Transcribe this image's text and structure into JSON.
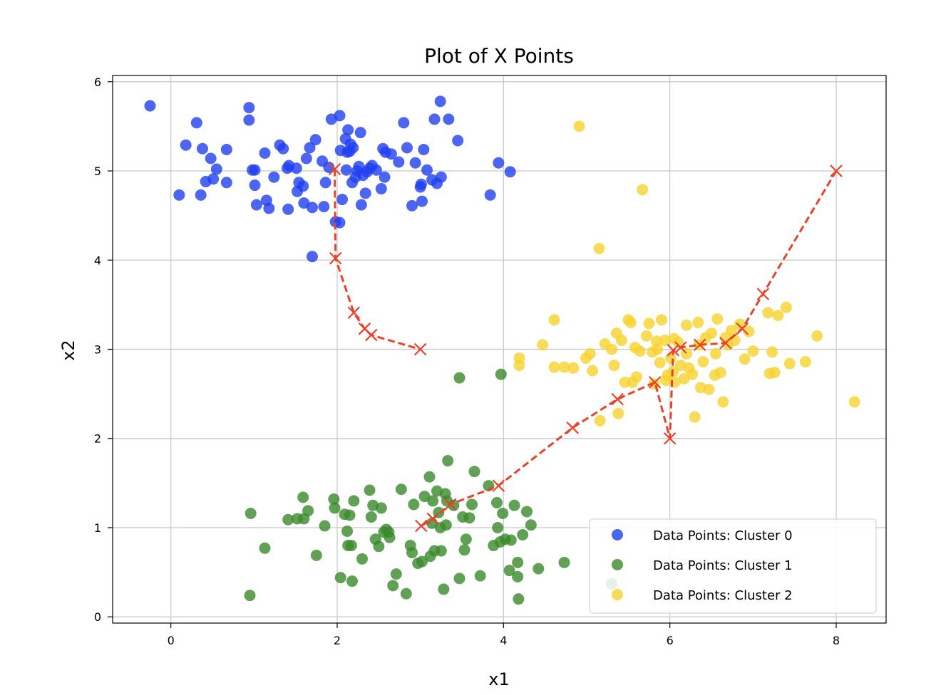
{
  "chart_data": {
    "type": "scatter",
    "title": "Plot of X Points",
    "xlabel": "x1",
    "ylabel": "x2",
    "xlim": [
      -0.7,
      8.6
    ],
    "ylim": [
      -0.07,
      6.07
    ],
    "xticks": [
      "0",
      "2",
      "4",
      "6",
      "8"
    ],
    "yticks": [
      "0",
      "1",
      "2",
      "3",
      "4",
      "5",
      "6"
    ],
    "grid": true,
    "legend_position": "lower-right",
    "series": [
      {
        "name": "Data Points: Cluster 0",
        "color": "#1f3ff0",
        "points": [
          [
            -0.25,
            5.73
          ],
          [
            0.1,
            4.73
          ],
          [
            0.18,
            5.29
          ],
          [
            0.31,
            5.54
          ],
          [
            0.36,
            4.73
          ],
          [
            0.38,
            5.25
          ],
          [
            0.42,
            4.88
          ],
          [
            0.48,
            5.14
          ],
          [
            0.51,
            4.91
          ],
          [
            0.55,
            5.02
          ],
          [
            0.67,
            5.24
          ],
          [
            0.67,
            4.87
          ],
          [
            0.94,
            5.71
          ],
          [
            0.94,
            5.57
          ],
          [
            0.98,
            5.01
          ],
          [
            1.01,
            5.01
          ],
          [
            1.01,
            4.84
          ],
          [
            1.03,
            4.62
          ],
          [
            1.13,
            5.2
          ],
          [
            1.15,
            4.67
          ],
          [
            1.18,
            4.58
          ],
          [
            1.24,
            4.93
          ],
          [
            1.31,
            5.29
          ],
          [
            1.35,
            5.25
          ],
          [
            1.4,
            5.03
          ],
          [
            1.41,
            4.57
          ],
          [
            1.42,
            5.06
          ],
          [
            1.51,
            5.03
          ],
          [
            1.52,
            4.77
          ],
          [
            1.54,
            4.87
          ],
          [
            1.59,
            4.83
          ],
          [
            1.6,
            4.64
          ],
          [
            1.63,
            5.14
          ],
          [
            1.67,
            5.26
          ],
          [
            1.7,
            4.59
          ],
          [
            1.74,
            5.35
          ],
          [
            1.82,
            5.11
          ],
          [
            1.84,
            4.6
          ],
          [
            1.86,
            4.87
          ],
          [
            1.9,
            5.04
          ],
          [
            1.93,
            5.58
          ],
          [
            1.98,
            4.43
          ],
          [
            2.03,
            5.62
          ],
          [
            2.04,
            5.23
          ],
          [
            2.06,
            4.68
          ],
          [
            2.1,
            5.36
          ],
          [
            2.11,
            5.01
          ],
          [
            2.12,
            5.21
          ],
          [
            2.13,
            5.46
          ],
          [
            2.16,
            5.3
          ],
          [
            2.18,
            4.87
          ],
          [
            2.19,
            5.26
          ],
          [
            2.22,
            4.93
          ],
          [
            2.24,
            5.0
          ],
          [
            2.26,
            5.05
          ],
          [
            2.28,
            5.43
          ],
          [
            2.29,
            4.62
          ],
          [
            2.31,
            4.95
          ],
          [
            2.34,
            4.75
          ],
          [
            2.36,
            4.99
          ],
          [
            2.39,
            5.03
          ],
          [
            2.42,
            5.06
          ],
          [
            2.47,
            5.01
          ],
          [
            2.53,
            4.8
          ],
          [
            2.55,
            5.25
          ],
          [
            2.57,
            4.93
          ],
          [
            2.58,
            5.21
          ],
          [
            2.65,
            5.19
          ],
          [
            2.74,
            5.1
          ],
          [
            2.8,
            5.54
          ],
          [
            2.84,
            5.26
          ],
          [
            2.9,
            4.61
          ],
          [
            2.94,
            5.09
          ],
          [
            3.0,
            4.82
          ],
          [
            3.02,
            4.66
          ],
          [
            3.04,
            5.24
          ],
          [
            3.08,
            5.01
          ],
          [
            3.14,
            4.9
          ],
          [
            3.17,
            5.58
          ],
          [
            3.2,
            4.86
          ],
          [
            3.24,
            5.78
          ],
          [
            3.25,
            4.93
          ],
          [
            3.34,
            5.58
          ],
          [
            3.45,
            5.34
          ],
          [
            3.84,
            4.73
          ],
          [
            3.94,
            5.09
          ],
          [
            4.08,
            4.99
          ],
          [
            1.7,
            4.04
          ],
          [
            2.03,
            4.42
          ],
          [
            2.15,
            5.22
          ],
          [
            3.01,
            4.85
          ]
        ]
      },
      {
        "name": "Data Points: Cluster 1",
        "color": "#3a8a2a",
        "points": [
          [
            0.96,
            1.16
          ],
          [
            0.95,
            0.24
          ],
          [
            1.13,
            0.77
          ],
          [
            1.41,
            1.09
          ],
          [
            1.52,
            1.1
          ],
          [
            1.59,
            1.34
          ],
          [
            1.6,
            1.1
          ],
          [
            1.65,
            1.19
          ],
          [
            1.75,
            0.69
          ],
          [
            1.85,
            1.02
          ],
          [
            1.96,
            1.32
          ],
          [
            1.97,
            1.22
          ],
          [
            2.04,
            0.44
          ],
          [
            2.09,
            1.15
          ],
          [
            2.12,
            0.96
          ],
          [
            2.13,
            0.8
          ],
          [
            2.15,
            1.14
          ],
          [
            2.17,
            0.8
          ],
          [
            2.18,
            0.4
          ],
          [
            2.2,
            1.3
          ],
          [
            2.3,
            0.65
          ],
          [
            2.39,
            1.42
          ],
          [
            2.41,
            1.12
          ],
          [
            2.43,
            1.25
          ],
          [
            2.46,
            0.87
          ],
          [
            2.5,
            0.79
          ],
          [
            2.53,
            1.22
          ],
          [
            2.56,
            0.95
          ],
          [
            2.59,
            0.98
          ],
          [
            2.63,
            0.89
          ],
          [
            2.67,
            0.35
          ],
          [
            2.71,
            0.48
          ],
          [
            2.77,
            1.43
          ],
          [
            2.83,
            0.26
          ],
          [
            2.88,
            0.8
          ],
          [
            2.9,
            0.72
          ],
          [
            2.92,
            1.26
          ],
          [
            3.02,
            0.62
          ],
          [
            3.05,
            1.35
          ],
          [
            3.11,
            1.57
          ],
          [
            3.12,
            0.68
          ],
          [
            3.15,
            1.3
          ],
          [
            3.17,
            0.74
          ],
          [
            3.2,
            1.41
          ],
          [
            3.22,
            1.17
          ],
          [
            3.25,
            0.74
          ],
          [
            3.28,
            0.31
          ],
          [
            3.3,
            1.38
          ],
          [
            3.31,
            1.03
          ],
          [
            3.32,
            1.3
          ],
          [
            3.33,
            1.75
          ],
          [
            3.4,
            1.25
          ],
          [
            3.47,
            0.43
          ],
          [
            3.51,
            1.12
          ],
          [
            3.53,
            0.75
          ],
          [
            3.55,
            0.87
          ],
          [
            3.59,
            1.11
          ],
          [
            3.62,
            1.26
          ],
          [
            3.65,
            1.63
          ],
          [
            3.72,
            0.46
          ],
          [
            3.82,
            1.47
          ],
          [
            3.88,
            0.8
          ],
          [
            3.92,
            1.28
          ],
          [
            3.93,
            1.0
          ],
          [
            3.96,
            0.84
          ],
          [
            3.99,
            1.16
          ],
          [
            4.02,
            0.87
          ],
          [
            4.07,
            0.52
          ],
          [
            4.09,
            0.86
          ],
          [
            4.13,
            1.25
          ],
          [
            4.17,
            0.61
          ],
          [
            4.18,
            0.2
          ],
          [
            4.23,
            0.92
          ],
          [
            4.28,
            1.18
          ],
          [
            4.33,
            1.03
          ],
          [
            4.42,
            0.54
          ],
          [
            4.73,
            0.61
          ],
          [
            3.47,
            2.68
          ],
          [
            3.97,
            2.72
          ],
          [
            2.62,
            0.95
          ],
          [
            3.14,
            1.05
          ],
          [
            2.97,
            0.6
          ],
          [
            3.24,
            1.0
          ],
          [
            4.17,
            0.45
          ],
          [
            5.3,
            0.37
          ]
        ]
      },
      {
        "name": "Data Points: Cluster 2",
        "color": "#f6d330",
        "points": [
          [
            4.19,
            2.9
          ],
          [
            4.19,
            2.82
          ],
          [
            4.47,
            3.05
          ],
          [
            4.61,
            3.33
          ],
          [
            4.61,
            2.8
          ],
          [
            4.73,
            2.8
          ],
          [
            4.84,
            2.79
          ],
          [
            4.91,
            5.5
          ],
          [
            4.99,
            2.9
          ],
          [
            5.04,
            2.95
          ],
          [
            5.07,
            2.76
          ],
          [
            5.15,
            4.13
          ],
          [
            5.16,
            2.2
          ],
          [
            5.22,
            3.06
          ],
          [
            5.3,
            3.0
          ],
          [
            5.33,
            2.82
          ],
          [
            5.36,
            3.18
          ],
          [
            5.38,
            2.28
          ],
          [
            5.42,
            3.1
          ],
          [
            5.46,
            2.63
          ],
          [
            5.5,
            3.33
          ],
          [
            5.53,
            3.3
          ],
          [
            5.55,
            2.63
          ],
          [
            5.58,
            3.02
          ],
          [
            5.6,
            2.69
          ],
          [
            5.64,
            2.98
          ],
          [
            5.67,
            4.79
          ],
          [
            5.72,
            3.15
          ],
          [
            5.75,
            3.29
          ],
          [
            5.79,
            2.97
          ],
          [
            5.81,
            2.61
          ],
          [
            5.84,
            3.09
          ],
          [
            5.88,
            2.85
          ],
          [
            5.9,
            3.33
          ],
          [
            5.94,
            3.1
          ],
          [
            5.97,
            2.71
          ],
          [
            6.01,
            2.9
          ],
          [
            6.04,
            2.75
          ],
          [
            6.06,
            2.63
          ],
          [
            6.1,
            3.08
          ],
          [
            6.13,
            2.82
          ],
          [
            6.17,
            2.67
          ],
          [
            6.2,
            3.27
          ],
          [
            6.23,
            2.79
          ],
          [
            6.27,
            2.72
          ],
          [
            6.3,
            2.24
          ],
          [
            6.34,
            3.3
          ],
          [
            6.37,
            2.57
          ],
          [
            6.4,
            2.86
          ],
          [
            6.43,
            3.13
          ],
          [
            6.47,
            2.55
          ],
          [
            6.5,
            3.18
          ],
          [
            6.54,
            2.71
          ],
          [
            6.57,
            3.34
          ],
          [
            6.61,
            2.74
          ],
          [
            6.64,
            2.41
          ],
          [
            6.67,
            3.13
          ],
          [
            6.7,
            3.05
          ],
          [
            6.74,
            3.21
          ],
          [
            6.78,
            3.1
          ],
          [
            6.84,
            3.28
          ],
          [
            6.9,
            2.89
          ],
          [
            6.95,
            3.2
          ],
          [
            7.0,
            2.98
          ],
          [
            7.18,
            3.41
          ],
          [
            7.2,
            2.73
          ],
          [
            7.23,
            2.97
          ],
          [
            7.26,
            2.74
          ],
          [
            7.3,
            3.38
          ],
          [
            7.4,
            3.47
          ],
          [
            7.44,
            2.84
          ],
          [
            7.63,
            2.86
          ],
          [
            7.77,
            3.15
          ],
          [
            8.22,
            2.41
          ],
          [
            5.85,
            3.0
          ],
          [
            6.05,
            3.12
          ],
          [
            6.55,
            2.95
          ],
          [
            6.2,
            2.95
          ],
          [
            5.95,
            2.65
          ],
          [
            6.35,
            3.05
          ]
        ]
      }
    ],
    "path": {
      "color": "#e8432a",
      "paths": [
        [
          [
            1.97,
            5.02
          ],
          [
            1.98,
            4.02
          ],
          [
            2.2,
            3.41
          ],
          [
            2.33,
            3.23
          ],
          [
            2.41,
            3.16
          ],
          [
            3.0,
            3.0
          ]
        ],
        [
          [
            8.0,
            5.0
          ],
          [
            7.12,
            3.62
          ],
          [
            6.87,
            3.23
          ],
          [
            6.67,
            3.07
          ],
          [
            6.36,
            3.05
          ],
          [
            6.13,
            3.02
          ],
          [
            6.04,
            2.99
          ],
          [
            6.0,
            2.0
          ],
          [
            5.82,
            2.63
          ],
          [
            5.37,
            2.44
          ],
          [
            4.83,
            2.12
          ],
          [
            3.94,
            1.47
          ],
          [
            3.36,
            1.26
          ],
          [
            3.15,
            1.1
          ],
          [
            3.01,
            1.02
          ]
        ]
      ]
    }
  }
}
